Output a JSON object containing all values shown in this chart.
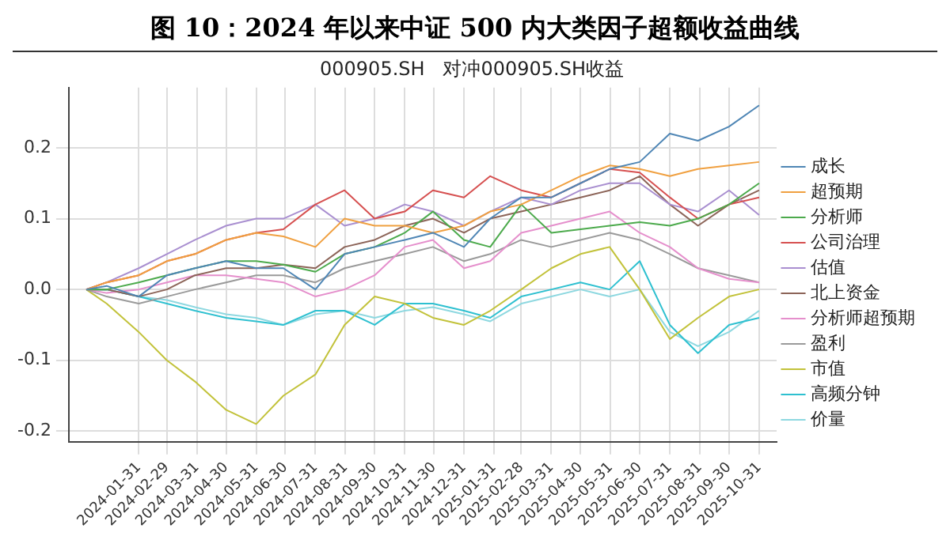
{
  "chart_data": {
    "type": "line",
    "title": "图 10：2024 年以来中证 500 内大类因子超额收益曲线",
    "subtitle": "000905.SH   对冲000905.SH收益",
    "x": [
      "2023-12-08",
      "2023-12-29",
      "2024-01-31",
      "2024-02-29",
      "2024-03-29",
      "2024-04-30",
      "2024-05-31",
      "2024-06-28",
      "2024-07-31",
      "2024-08-30",
      "2024-09-30",
      "2024-10-31",
      "2024-11-29",
      "2024-12-31",
      "2025-01-27",
      "2025-02-28",
      "2025-03-31",
      "2025-04-30",
      "2025-05-30",
      "2025-06-30",
      "2025-07-31",
      "2025-08-29",
      "2025-09-30",
      "2025-10-31"
    ],
    "series": [
      {
        "name": "成长",
        "color": "#4f86b5",
        "values": [
          0,
          0.005,
          -0.01,
          0.02,
          0.03,
          0.04,
          0.03,
          0.03,
          0.0,
          0.05,
          0.06,
          0.07,
          0.08,
          0.06,
          0.1,
          0.13,
          0.13,
          0.15,
          0.17,
          0.18,
          0.22,
          0.21,
          0.23,
          0.26
        ]
      },
      {
        "name": "超预期",
        "color": "#f0a040",
        "values": [
          0,
          0.01,
          0.02,
          0.04,
          0.05,
          0.07,
          0.08,
          0.075,
          0.06,
          0.1,
          0.09,
          0.09,
          0.08,
          0.09,
          0.11,
          0.12,
          0.14,
          0.16,
          0.175,
          0.17,
          0.16,
          0.17,
          0.175,
          0.18
        ]
      },
      {
        "name": "分析师",
        "color": "#4caa4c",
        "values": [
          0,
          0.0,
          0.01,
          0.02,
          0.03,
          0.04,
          0.04,
          0.035,
          0.025,
          0.05,
          0.06,
          0.08,
          0.11,
          0.07,
          0.06,
          0.12,
          0.08,
          0.085,
          0.09,
          0.095,
          0.09,
          0.1,
          0.12,
          0.15
        ]
      },
      {
        "name": "公司治理",
        "color": "#d65050",
        "values": [
          0,
          0.01,
          0.02,
          0.04,
          0.05,
          0.07,
          0.08,
          0.085,
          0.12,
          0.14,
          0.1,
          0.11,
          0.14,
          0.13,
          0.16,
          0.14,
          0.13,
          0.15,
          0.17,
          0.165,
          0.13,
          0.1,
          0.12,
          0.13
        ]
      },
      {
        "name": "估值",
        "color": "#a98fd0",
        "values": [
          0,
          0.01,
          0.03,
          0.05,
          0.07,
          0.09,
          0.1,
          0.1,
          0.12,
          0.09,
          0.1,
          0.12,
          0.11,
          0.09,
          0.11,
          0.13,
          0.12,
          0.14,
          0.15,
          0.15,
          0.12,
          0.11,
          0.14,
          0.105
        ]
      },
      {
        "name": "北上资金",
        "color": "#8c6458",
        "values": [
          0,
          0,
          -0.01,
          0.0,
          0.02,
          0.03,
          0.03,
          0.035,
          0.03,
          0.06,
          0.07,
          0.09,
          0.1,
          0.08,
          0.1,
          0.11,
          0.12,
          0.13,
          0.14,
          0.16,
          0.12,
          0.09,
          0.12,
          0.14
        ]
      },
      {
        "name": "分析师超预期",
        "color": "#e58fcc",
        "values": [
          0,
          -0.005,
          0.0,
          0.01,
          0.02,
          0.02,
          0.015,
          0.01,
          -0.01,
          0.0,
          0.02,
          0.06,
          0.07,
          0.03,
          0.04,
          0.08,
          0.09,
          0.1,
          0.11,
          0.08,
          0.06,
          0.03,
          0.015,
          0.01
        ]
      },
      {
        "name": "盈利",
        "color": "#9a9a9a",
        "values": [
          0,
          -0.01,
          -0.02,
          -0.01,
          0.0,
          0.01,
          0.02,
          0.02,
          0.01,
          0.03,
          0.04,
          0.05,
          0.06,
          0.04,
          0.05,
          0.07,
          0.06,
          0.07,
          0.08,
          0.07,
          0.05,
          0.03,
          0.02,
          0.01
        ]
      },
      {
        "name": "市值",
        "color": "#c2c23a",
        "values": [
          0,
          -0.02,
          -0.06,
          -0.1,
          -0.13,
          -0.17,
          -0.19,
          -0.15,
          -0.12,
          -0.05,
          -0.01,
          -0.02,
          -0.04,
          -0.05,
          -0.03,
          0.0,
          0.03,
          0.05,
          0.06,
          0.0,
          -0.07,
          -0.04,
          -0.01,
          0.0
        ]
      },
      {
        "name": "高频分钟",
        "color": "#2ec0d0",
        "values": [
          0,
          0.0,
          -0.01,
          -0.02,
          -0.03,
          -0.04,
          -0.045,
          -0.05,
          -0.03,
          -0.03,
          -0.05,
          -0.02,
          -0.02,
          -0.03,
          -0.04,
          -0.01,
          0.0,
          0.01,
          0.0,
          0.04,
          -0.05,
          -0.09,
          -0.05,
          -0.04
        ]
      },
      {
        "name": "价量",
        "color": "#8ed8e0",
        "values": [
          0,
          0.0,
          -0.01,
          -0.015,
          -0.025,
          -0.035,
          -0.04,
          -0.05,
          -0.035,
          -0.03,
          -0.04,
          -0.03,
          -0.025,
          -0.035,
          -0.045,
          -0.02,
          -0.01,
          0.0,
          -0.01,
          0.0,
          -0.06,
          -0.08,
          -0.06,
          -0.03
        ]
      }
    ],
    "xlim": [
      "2023-11-20",
      "2025-11-18"
    ],
    "xticks": [
      "2024-01-31",
      "2024-02-29",
      "2024-03-31",
      "2024-04-30",
      "2024-05-31",
      "2024-06-30",
      "2024-07-31",
      "2024-08-31",
      "2024-09-30",
      "2024-10-31",
      "2024-11-30",
      "2024-12-31",
      "2025-01-31",
      "2025-02-28",
      "2025-03-31",
      "2025-04-30",
      "2025-05-31",
      "2025-06-30",
      "2025-07-31",
      "2025-08-31",
      "2025-09-30",
      "2025-10-31"
    ],
    "ylim": [
      -0.215,
      0.285
    ],
    "yticks": [
      {
        "value": -0.2,
        "label": "-0.2"
      },
      {
        "value": -0.1,
        "label": "-0.1"
      },
      {
        "value": 0,
        "label": "0.0"
      },
      {
        "value": 0.1,
        "label": "0.1"
      },
      {
        "value": 0.2,
        "label": "0.2"
      }
    ],
    "grid": true,
    "legend": "right",
    "marker": "none",
    "line_style": "solid"
  }
}
